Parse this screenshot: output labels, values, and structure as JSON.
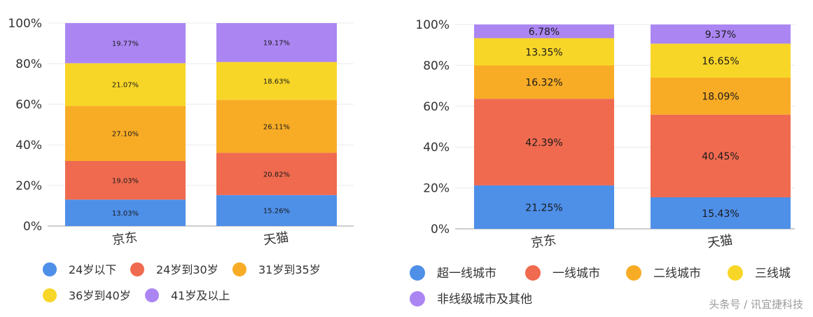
{
  "chart_data": [
    {
      "type": "bar",
      "stacked": true,
      "categories": [
        "京东",
        "天猫"
      ],
      "ylim": [
        0,
        100
      ],
      "y_ticks": [
        "0%",
        "20%",
        "40%",
        "60%",
        "80%",
        "100%"
      ],
      "grid": true,
      "legend_position": "bottom",
      "series": [
        {
          "name": "24岁以下",
          "color": "#4e8fe8",
          "values": [
            13.03,
            15.26
          ],
          "labels": [
            "13.03%",
            "15.26%"
          ]
        },
        {
          "name": "24岁到30岁",
          "color": "#ef6a4f",
          "values": [
            19.03,
            20.82
          ],
          "labels": [
            "19.03%",
            "20.82%"
          ]
        },
        {
          "name": "31岁到35岁",
          "color": "#f8ac26",
          "values": [
            27.1,
            26.11
          ],
          "labels": [
            "27.10%",
            "26.11%"
          ]
        },
        {
          "name": "36岁到40岁",
          "color": "#f8d628",
          "values": [
            21.07,
            18.63
          ],
          "labels": [
            "21.07%",
            "18.63%"
          ]
        },
        {
          "name": "41岁及以上",
          "color": "#ab86f3",
          "values": [
            19.77,
            19.17
          ],
          "labels": [
            "19.77%",
            "19.17%"
          ]
        }
      ]
    },
    {
      "type": "bar",
      "stacked": true,
      "categories": [
        "京东",
        "天猫"
      ],
      "ylim": [
        0,
        100
      ],
      "y_ticks": [
        "0%",
        "20%",
        "40%",
        "60%",
        "80%",
        "100%"
      ],
      "grid": true,
      "legend_position": "bottom",
      "series": [
        {
          "name": "超一线城市",
          "color": "#4e8fe8",
          "values": [
            21.25,
            15.43
          ],
          "labels": [
            "21.25%",
            "15.43%"
          ]
        },
        {
          "name": "一线城市",
          "color": "#ef6a4f",
          "values": [
            42.39,
            40.45
          ],
          "labels": [
            "42.39%",
            "40.45%"
          ]
        },
        {
          "name": "二线城市",
          "color": "#f8ac26",
          "values": [
            16.32,
            18.09
          ],
          "labels": [
            "16.32%",
            "18.09%"
          ]
        },
        {
          "name": "三线城",
          "color": "#f8d628",
          "values": [
            13.35,
            16.65
          ],
          "labels": [
            "13.35%",
            "16.65%"
          ]
        },
        {
          "name": "非线级城市及其他",
          "color": "#ab86f3",
          "values": [
            6.78,
            9.37
          ],
          "labels": [
            "6.78%",
            "9.37%"
          ]
        }
      ]
    }
  ],
  "watermark": "头条号 / 讯宜捷科技"
}
